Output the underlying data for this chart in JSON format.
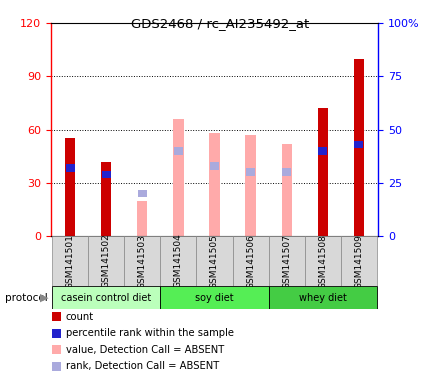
{
  "title": "GDS2468 / rc_AI235492_at",
  "samples": [
    "GSM141501",
    "GSM141502",
    "GSM141503",
    "GSM141504",
    "GSM141505",
    "GSM141506",
    "GSM141507",
    "GSM141508",
    "GSM141509"
  ],
  "count_values": [
    55,
    42,
    0,
    0,
    0,
    0,
    0,
    72,
    100
  ],
  "rank_values": [
    32,
    29,
    0,
    0,
    0,
    0,
    0,
    40,
    43
  ],
  "absent_value_values": [
    0,
    0,
    20,
    66,
    58,
    57,
    52,
    0,
    0
  ],
  "absent_rank_values": [
    0,
    0,
    20,
    40,
    33,
    30,
    30,
    0,
    0
  ],
  "ylim_left": [
    0,
    120
  ],
  "ylim_right": [
    0,
    100
  ],
  "yticks_left": [
    0,
    30,
    60,
    90,
    120
  ],
  "yticks_right": [
    0,
    25,
    50,
    75,
    100
  ],
  "ytick_labels_right": [
    "0",
    "25",
    "50",
    "75",
    "100%"
  ],
  "color_count": "#cc0000",
  "color_rank": "#2222cc",
  "color_absent_value": "#ffaaaa",
  "color_absent_rank": "#aaaadd",
  "bar_width": 0.28,
  "protocol_groups": [
    {
      "label": "casein control diet",
      "start": 0,
      "end": 3,
      "color": "#bbffbb"
    },
    {
      "label": "soy diet",
      "start": 3,
      "end": 6,
      "color": "#55ee55"
    },
    {
      "label": "whey diet",
      "start": 6,
      "end": 9,
      "color": "#44cc44"
    }
  ],
  "legend_items": [
    {
      "label": "count",
      "color": "#cc0000"
    },
    {
      "label": "percentile rank within the sample",
      "color": "#2222cc"
    },
    {
      "label": "value, Detection Call = ABSENT",
      "color": "#ffaaaa"
    },
    {
      "label": "rank, Detection Call = ABSENT",
      "color": "#aaaadd"
    }
  ]
}
